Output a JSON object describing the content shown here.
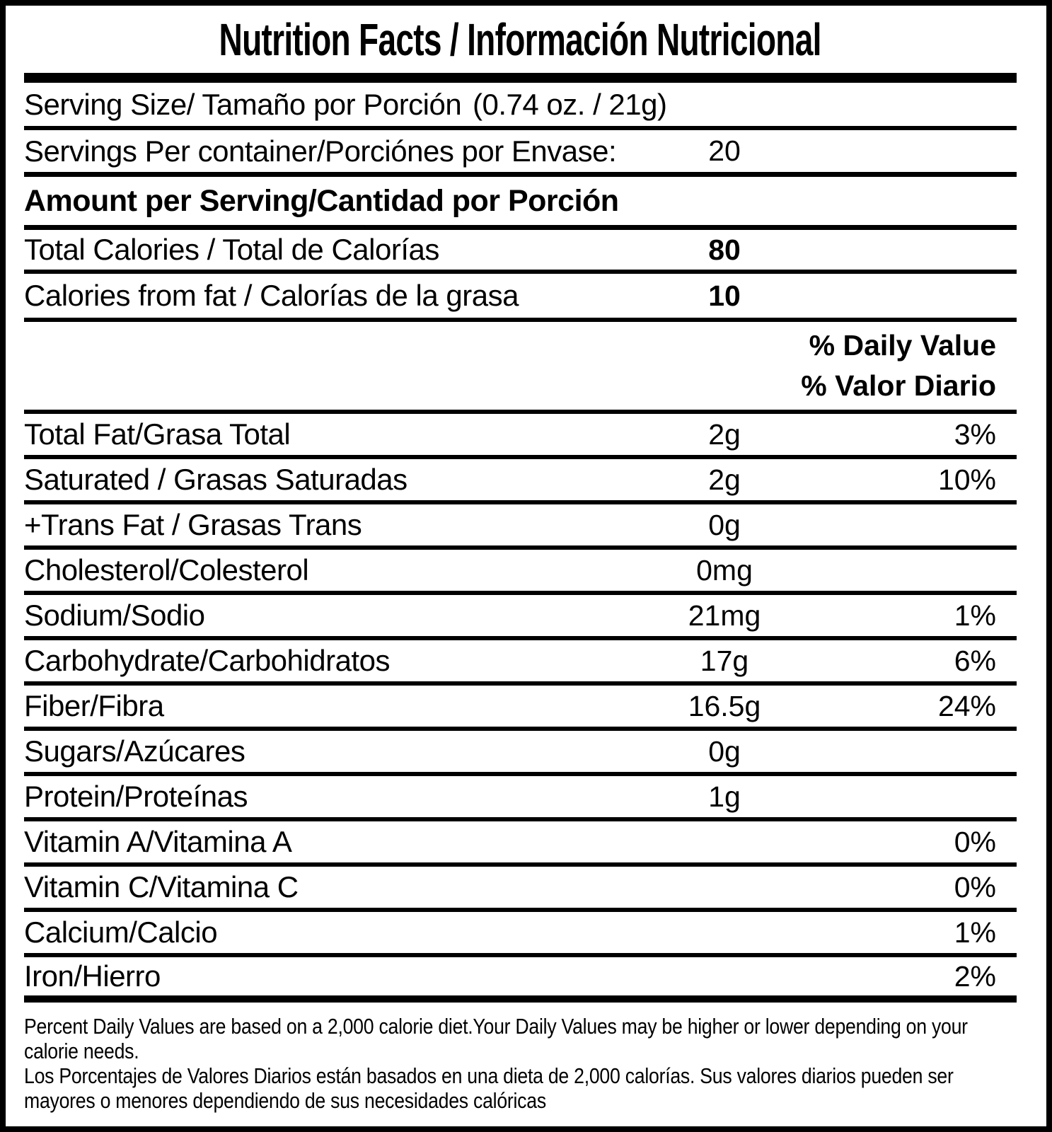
{
  "title": "Nutrition Facts / Información Nutricional",
  "serving": {
    "label": "Serving Size/ Tamaño por Porción",
    "value": "(0.74 oz. / 21g)"
  },
  "servings_per_container": {
    "label": "Servings Per container/Porciónes por Envase:",
    "value": "20"
  },
  "amount_per_serving_heading": "Amount per Serving/Cantidad por Porción",
  "calories": [
    {
      "label": "Total Calories / Total de Calorías",
      "value": "80"
    },
    {
      "label": "Calories from fat / Calorías de la grasa",
      "value": "10"
    }
  ],
  "daily_value_heading": {
    "en": "% Daily Value",
    "es": "% Valor Diario"
  },
  "nutrients": [
    {
      "label": "Total Fat/Grasa Total",
      "amount": "2g",
      "dv": "3%"
    },
    {
      "label": "Saturated / Grasas Saturadas",
      "amount": "2g",
      "dv": "10%"
    },
    {
      "label": "+Trans Fat / Grasas Trans",
      "amount": "0g",
      "dv": ""
    },
    {
      "label": "Cholesterol/Colesterol",
      "amount": "0mg",
      "dv": ""
    },
    {
      "label": "Sodium/Sodio",
      "amount": "21mg",
      "dv": "1%"
    },
    {
      "label": "Carbohydrate/Carbohidratos",
      "amount": "17g",
      "dv": "6%"
    },
    {
      "label": "Fiber/Fibra",
      "amount": "16.5g",
      "dv": "24%"
    },
    {
      "label": "Sugars/Azúcares",
      "amount": "0g",
      "dv": ""
    },
    {
      "label": "Protein/Proteínas",
      "amount": "1g",
      "dv": ""
    },
    {
      "label": "Vitamin A/Vitamina A",
      "amount": "",
      "dv": "0%"
    },
    {
      "label": "Vitamin C/Vitamina C",
      "amount": "",
      "dv": "0%"
    },
    {
      "label": "Calcium/Calcio",
      "amount": "",
      "dv": "1%"
    },
    {
      "label": "Iron/Hierro",
      "amount": "",
      "dv": "2%"
    }
  ],
  "footnote": {
    "en_lines": [
      "Percent Daily Values are based on a 2,000 calorie diet.Your Daily Values may be higher or lower depending on your",
      "calorie needs."
    ],
    "es_lines": [
      "Los Porcentajes de Valores Diarios están basados en una dieta de 2,000 calorías. Sus valores diarios pueden ser",
      "mayores o menores dependiendo de sus necesidades calóricas"
    ]
  },
  "colors": {
    "ink": "#000000",
    "background": "#ffffff"
  }
}
